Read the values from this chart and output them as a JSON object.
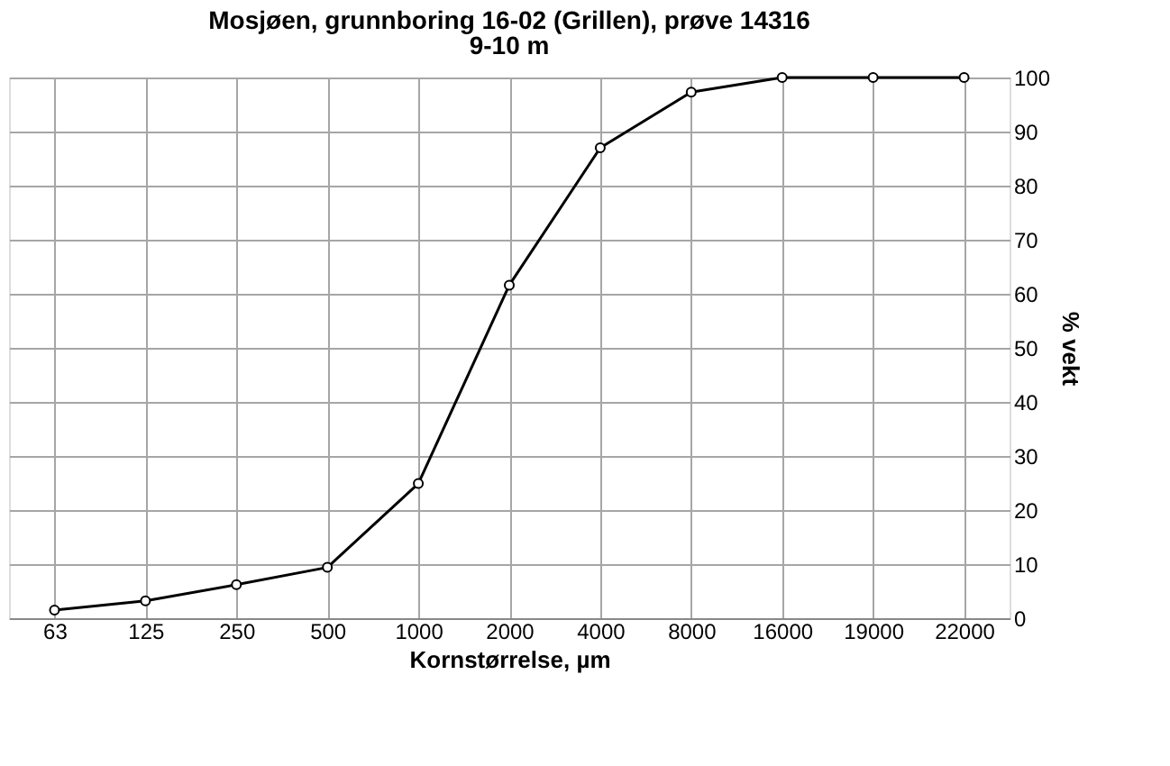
{
  "chart_data": {
    "type": "line",
    "title": "Mosjøen, grunnboring 16-02 (Grillen), prøve 14316",
    "subtitle": "9-10 m",
    "xlabel": "Kornstørrelse, µm",
    "ylabel": "% vekt",
    "categories": [
      "63",
      "125",
      "250",
      "500",
      "1000",
      "2000",
      "4000",
      "8000",
      "16000",
      "19000",
      "22000"
    ],
    "series": [
      {
        "color": "#000000",
        "values": [
          1.5,
          3.2,
          6.2,
          9.4,
          24.9,
          61.6,
          87.0,
          97.3,
          100,
          100,
          100
        ]
      }
    ],
    "ylim": [
      0,
      100
    ],
    "yticks": [
      0,
      10,
      20,
      30,
      40,
      50,
      60,
      70,
      80,
      90,
      100
    ],
    "grid": true,
    "marker": "circle",
    "line_style": "solid"
  }
}
